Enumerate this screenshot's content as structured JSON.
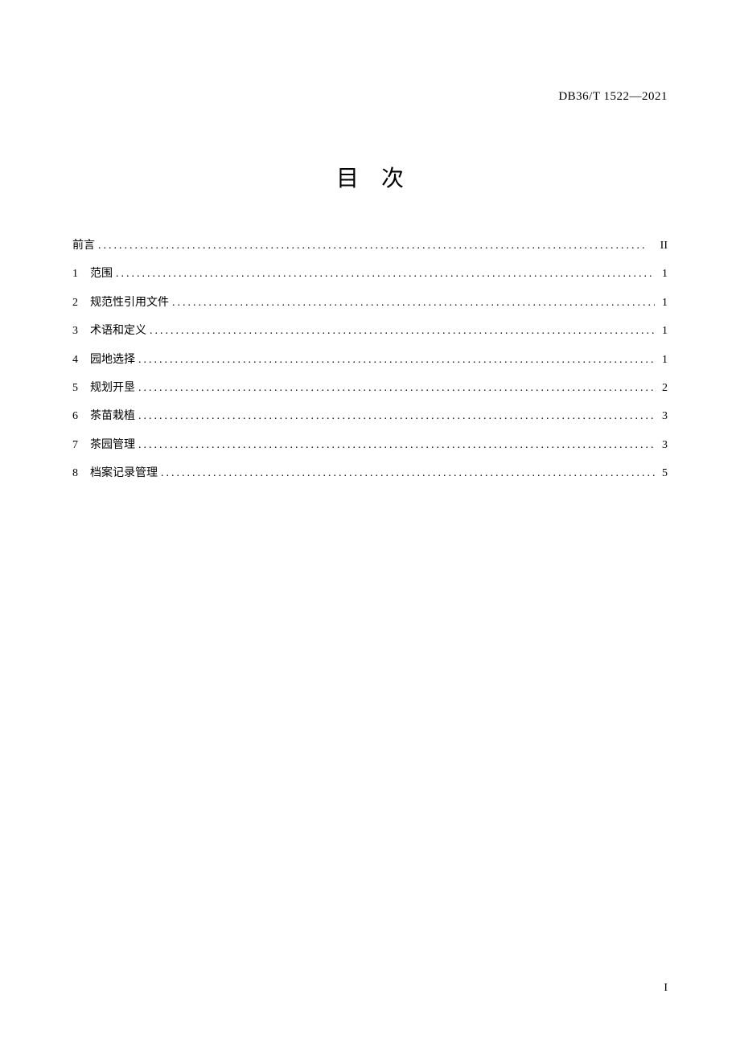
{
  "header": {
    "code": "DB36/T 1522—2021"
  },
  "title": "目次",
  "toc": {
    "entries": [
      {
        "num": "",
        "label": "前言",
        "page": "II"
      },
      {
        "num": "1",
        "label": "范围",
        "page": "1"
      },
      {
        "num": "2",
        "label": "规范性引用文件",
        "page": "1"
      },
      {
        "num": "3",
        "label": "术语和定义",
        "page": "1"
      },
      {
        "num": "4",
        "label": "园地选择",
        "page": "1"
      },
      {
        "num": "5",
        "label": "规划开垦",
        "page": "2"
      },
      {
        "num": "6",
        "label": "茶苗栽植",
        "page": "3"
      },
      {
        "num": "7",
        "label": "茶园管理",
        "page": "3"
      },
      {
        "num": "8",
        "label": "档案记录管理",
        "page": "5"
      }
    ]
  },
  "footer": {
    "page_number": "I"
  },
  "style": {
    "background_color": "#ffffff",
    "text_color": "#000000",
    "title_fontsize": 28,
    "body_fontsize": 14,
    "header_fontsize": 15,
    "dot_char": "."
  }
}
